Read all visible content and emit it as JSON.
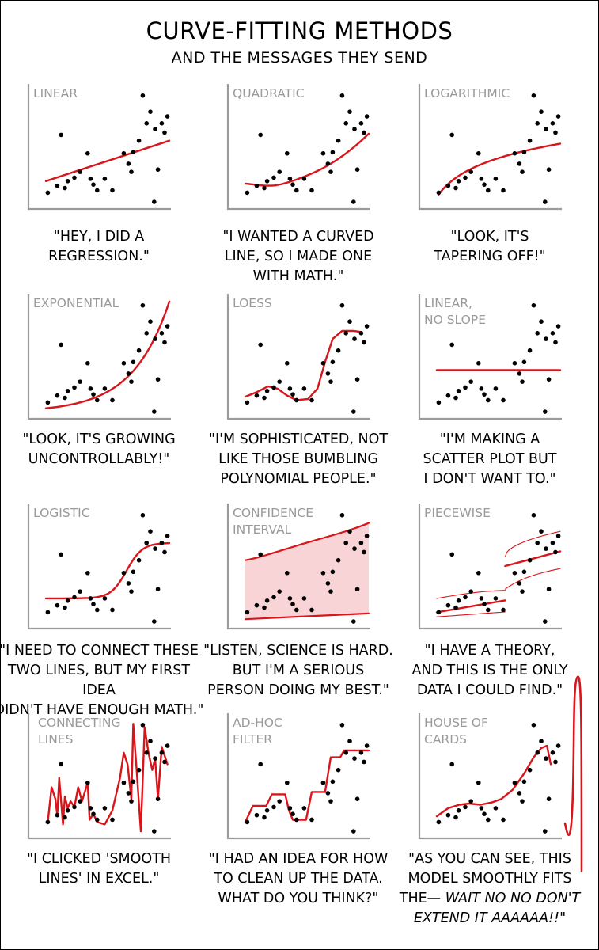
{
  "title": "CURVE-FITTING METHODS",
  "subtitle": "AND THE MESSAGES THEY SEND",
  "colors": {
    "curve": "#d8151b",
    "band": "#f9d4d6",
    "axis": "#9b9b9b",
    "text": "#000000"
  },
  "points": [
    [
      0.02,
      0.1
    ],
    [
      0.12,
      0.16
    ],
    [
      0.16,
      0.6
    ],
    [
      0.2,
      0.14
    ],
    [
      0.23,
      0.2
    ],
    [
      0.3,
      0.23
    ],
    [
      0.36,
      0.28
    ],
    [
      0.44,
      0.44
    ],
    [
      0.47,
      0.22
    ],
    [
      0.5,
      0.17
    ],
    [
      0.54,
      0.12
    ],
    [
      0.62,
      0.22
    ],
    [
      0.7,
      0.12
    ],
    [
      0.82,
      0.44
    ],
    [
      0.87,
      0.35
    ],
    [
      0.9,
      0.28
    ],
    [
      0.92,
      0.45
    ],
    [
      0.98,
      0.55
    ],
    [
      1.02,
      0.94
    ],
    [
      1.06,
      0.7
    ],
    [
      1.1,
      0.8
    ],
    [
      1.14,
      0.02
    ],
    [
      1.15,
      0.65
    ],
    [
      1.18,
      0.3
    ],
    [
      1.22,
      0.7
    ],
    [
      1.25,
      0.62
    ],
    [
      1.28,
      0.76
    ]
  ],
  "panels": [
    {
      "label": "LINEAR",
      "caption": "\"HEY, I DID A\nREGRESSION.\""
    },
    {
      "label": "QUADRATIC",
      "caption": "\"I WANTED A CURVED\nLINE, SO I MADE ONE\nWITH MATH.\""
    },
    {
      "label": "LOGARITHMIC",
      "caption": "\"LOOK, IT'S\nTAPERING OFF!\""
    },
    {
      "label": "EXPONENTIAL",
      "caption": "\"LOOK, IT'S GROWING\nUNCONTROLLABLY!\""
    },
    {
      "label": "LOESS",
      "caption": "\"I'M SOPHISTICATED, NOT\nLIKE THOSE BUMBLING\nPOLYNOMIAL PEOPLE.\""
    },
    {
      "label": "LINEAR,\nNO SLOPE",
      "caption": "\"I'M MAKING A\nSCATTER PLOT BUT\nI DON'T WANT TO.\""
    },
    {
      "label": "LOGISTIC",
      "caption": "\"I NEED TO CONNECT THESE\nTWO LINES, BUT MY FIRST IDEA\nDIDN'T HAVE ENOUGH MATH.\""
    },
    {
      "label": "CONFIDENCE\nINTERVAL",
      "caption": "\"LISTEN, SCIENCE IS HARD.\nBUT I'M A SERIOUS\nPERSON DOING MY BEST.\""
    },
    {
      "label": "PIECEWISE",
      "caption": "\"I HAVE A THEORY,\nAND THIS IS THE ONLY\nDATA I COULD FIND.\""
    },
    {
      "label": "CONNECTING\nLINES",
      "caption": "\"I CLICKED 'SMOOTH\nLINES' IN EXCEL.\""
    },
    {
      "label": "AD-HOC\nFILTER",
      "caption": "\"I HAD AN IDEA FOR HOW\nTO CLEAN UP THE DATA.\nWHAT DO YOU THINK?\""
    },
    {
      "label": "HOUSE OF\nCARDS",
      "caption_normal": "\"AS YOU CAN SEE, THIS\nMODEL SMOOTHLY FITS\nTHE— ",
      "caption_italic": "WAIT NO NO DON'T\nEXTEND IT AAAAAA!!\""
    }
  ]
}
